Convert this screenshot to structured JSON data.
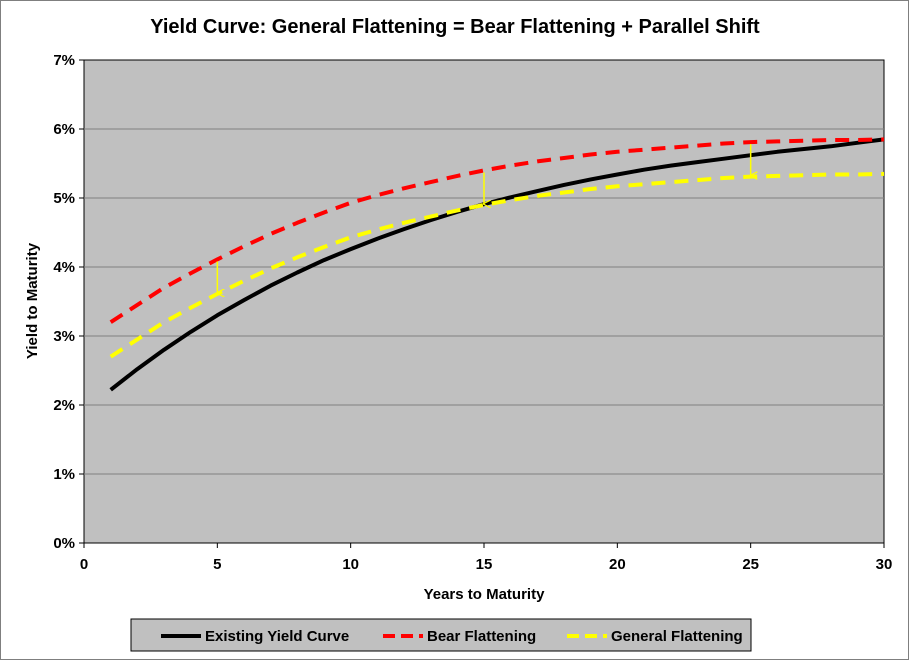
{
  "chart_data": {
    "type": "line",
    "title": "Yield Curve: General Flattening = Bear Flattening + Parallel Shift",
    "xlabel": "Years to Maturity",
    "ylabel": "Yield to Maturity",
    "xlim": [
      0,
      30
    ],
    "ylim": [
      0,
      7
    ],
    "x_ticks": [
      0,
      5,
      10,
      15,
      20,
      25,
      30
    ],
    "x_tick_labels": [
      "0",
      "5",
      "10",
      "15",
      "20",
      "25",
      "30"
    ],
    "y_ticks": [
      0,
      1,
      2,
      3,
      4,
      5,
      6,
      7
    ],
    "y_tick_labels": [
      "0%",
      "1%",
      "2%",
      "3%",
      "4%",
      "5%",
      "6%",
      "7%"
    ],
    "grid": "horizontal",
    "plot_background": "#c0c0c0",
    "legend_position": "bottom",
    "series": [
      {
        "name": "Existing Yield Curve",
        "color": "#000000",
        "style": "solid",
        "x": [
          1,
          2,
          3,
          4,
          5,
          6,
          7,
          8,
          9,
          10,
          11,
          12,
          13,
          14,
          15,
          16,
          17,
          18,
          19,
          20,
          21,
          22,
          23,
          24,
          25,
          26,
          27,
          28,
          29,
          30
        ],
        "values": [
          2.22,
          2.52,
          2.8,
          3.06,
          3.3,
          3.52,
          3.73,
          3.92,
          4.1,
          4.26,
          4.41,
          4.55,
          4.68,
          4.8,
          4.91,
          5.01,
          5.1,
          5.19,
          5.27,
          5.34,
          5.41,
          5.47,
          5.52,
          5.57,
          5.62,
          5.67,
          5.71,
          5.75,
          5.8,
          5.85
        ]
      },
      {
        "name": "Bear Flattening",
        "color": "#ff0000",
        "style": "dashed",
        "x": [
          1,
          2,
          3,
          4,
          5,
          6,
          7,
          8,
          9,
          10,
          11,
          12,
          13,
          14,
          15,
          16,
          17,
          18,
          19,
          20,
          21,
          22,
          23,
          24,
          25,
          26,
          27,
          28,
          29,
          30
        ],
        "values": [
          3.2,
          3.45,
          3.7,
          3.91,
          4.11,
          4.3,
          4.48,
          4.64,
          4.79,
          4.93,
          5.04,
          5.14,
          5.23,
          5.32,
          5.4,
          5.47,
          5.53,
          5.58,
          5.63,
          5.67,
          5.7,
          5.73,
          5.76,
          5.79,
          5.81,
          5.82,
          5.83,
          5.84,
          5.84,
          5.85
        ]
      },
      {
        "name": "General Flattening",
        "color": "#ffff00",
        "style": "dashed",
        "x": [
          1,
          2,
          3,
          4,
          5,
          6,
          7,
          8,
          9,
          10,
          11,
          12,
          13,
          14,
          15,
          16,
          17,
          18,
          19,
          20,
          21,
          22,
          23,
          24,
          25,
          26,
          27,
          28,
          29,
          30
        ],
        "values": [
          2.7,
          2.95,
          3.2,
          3.41,
          3.61,
          3.8,
          3.98,
          4.14,
          4.29,
          4.43,
          4.54,
          4.64,
          4.73,
          4.82,
          4.9,
          4.97,
          5.03,
          5.08,
          5.13,
          5.17,
          5.2,
          5.23,
          5.26,
          5.29,
          5.31,
          5.32,
          5.33,
          5.34,
          5.34,
          5.35
        ]
      }
    ],
    "annotations": [
      {
        "type": "arrow",
        "x": 5,
        "from": 4.11,
        "to": 3.61,
        "color": "#ffff00"
      },
      {
        "type": "arrow",
        "x": 15,
        "from": 5.4,
        "to": 4.9,
        "color": "#ffff00"
      },
      {
        "type": "arrow",
        "x": 25,
        "from": 5.81,
        "to": 5.31,
        "color": "#ffff00"
      }
    ]
  }
}
